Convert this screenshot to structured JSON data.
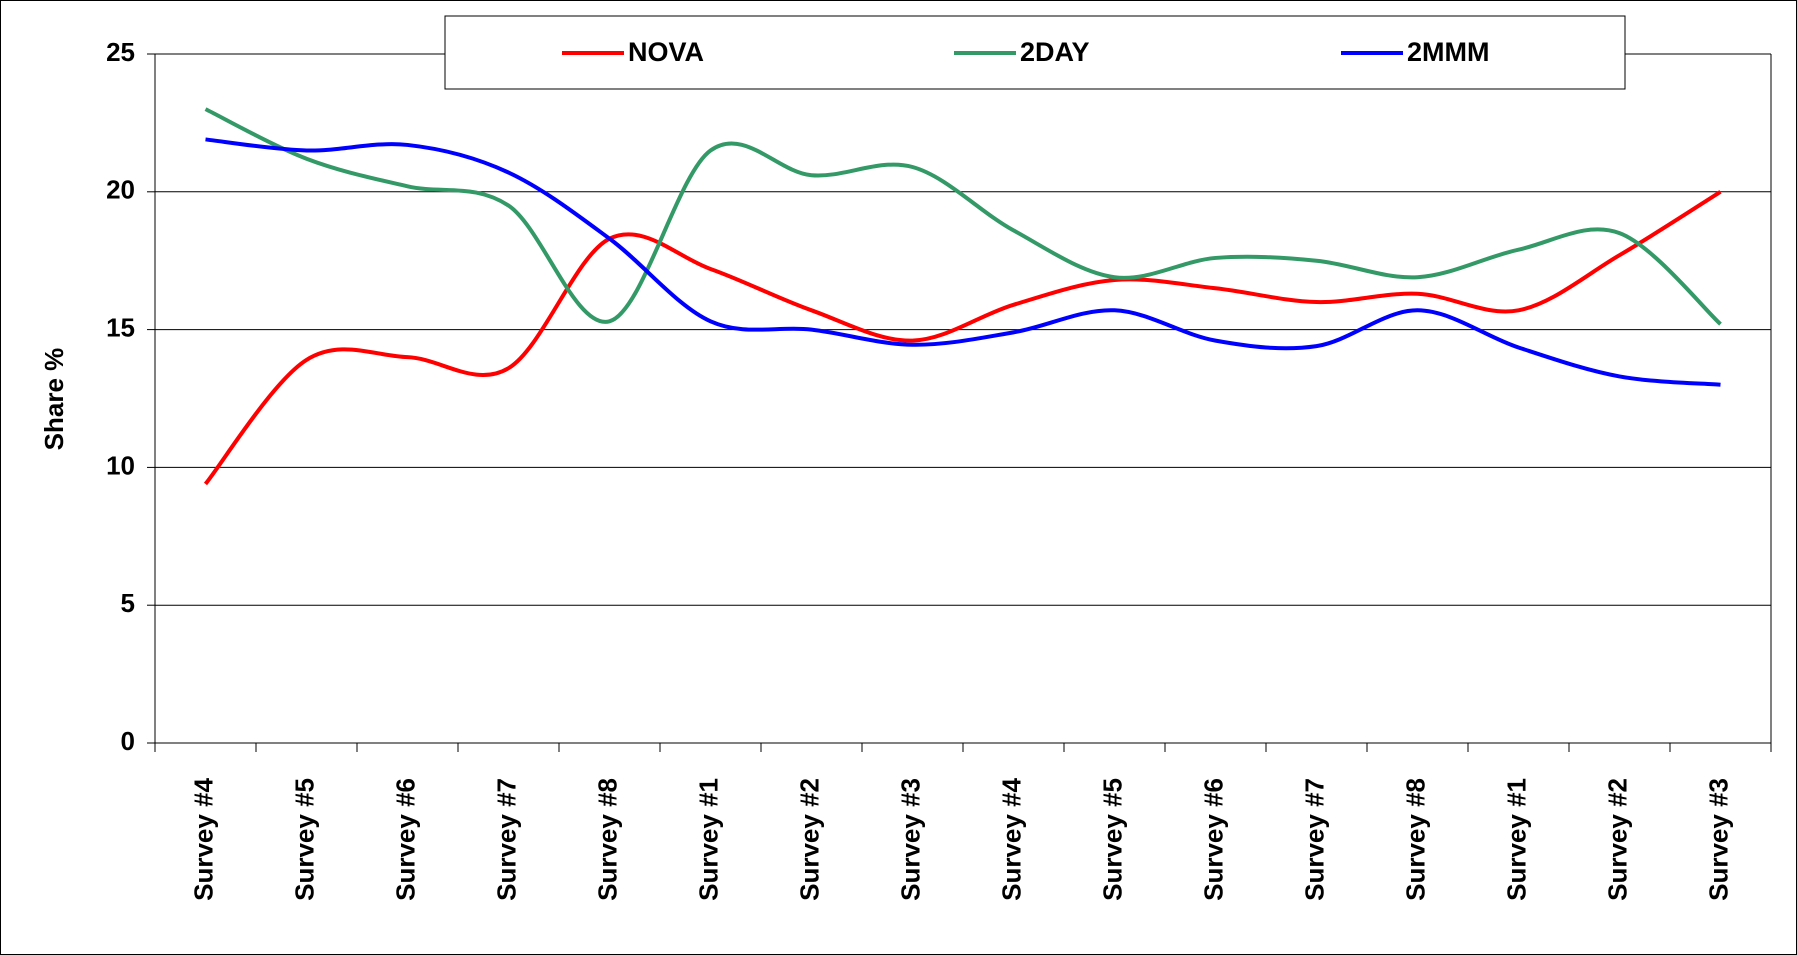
{
  "chart_data": {
    "type": "line",
    "y_label": "Share %",
    "categories": [
      "Survey #4",
      "Survey #5",
      "Survey #6",
      "Survey #7",
      "Survey #8",
      "Survey #1",
      "Survey #2",
      "Survey #3",
      "Survey #4",
      "Survey #5",
      "Survey #6",
      "Survey #7",
      "Survey #8",
      "Survey #1",
      "Survey #2",
      "Survey #3"
    ],
    "series": [
      {
        "name": "NOVA",
        "color": "#ff0000",
        "values": [
          9.4,
          13.9,
          14.0,
          13.6,
          18.3,
          17.2,
          15.7,
          14.6,
          15.9,
          16.8,
          16.5,
          16.0,
          16.3,
          15.7,
          17.7,
          20.0
        ]
      },
      {
        "name": "2DAY",
        "color": "#339966",
        "values": [
          23.0,
          21.2,
          20.2,
          19.5,
          15.3,
          21.5,
          20.6,
          20.9,
          18.6,
          16.9,
          17.6,
          17.5,
          16.9,
          17.9,
          18.5,
          15.2
        ]
      },
      {
        "name": "2MMM",
        "color": "#0000ff",
        "values": [
          21.9,
          21.5,
          21.7,
          20.7,
          18.3,
          15.3,
          15.0,
          14.45,
          14.9,
          15.7,
          14.6,
          14.4,
          15.7,
          14.35,
          13.3,
          13.0
        ]
      }
    ],
    "ylim": [
      0,
      25
    ],
    "yticks": [
      0,
      5,
      10,
      15,
      20,
      25
    ],
    "grid": true,
    "smooth": true,
    "legend": "top"
  }
}
